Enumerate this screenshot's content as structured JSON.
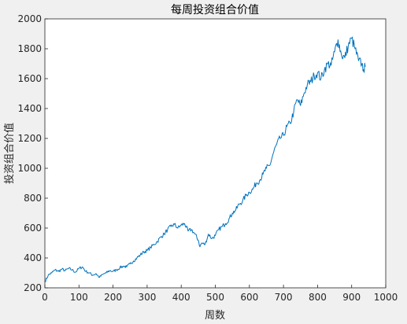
{
  "chart_data": {
    "type": "line",
    "title": "每周投资组合价值",
    "xlabel": "周数",
    "ylabel": "投资组合价值",
    "xlim": [
      0,
      1000
    ],
    "ylim": [
      200,
      2000
    ],
    "xticks": [
      0,
      100,
      200,
      300,
      400,
      500,
      600,
      700,
      800,
      900,
      1000
    ],
    "yticks": [
      200,
      400,
      600,
      800,
      1000,
      1200,
      1400,
      1600,
      1800,
      2000
    ],
    "grid": false,
    "legend": "none",
    "series": [
      {
        "color": "#0072bd",
        "x": [
          0,
          10,
          20,
          30,
          40,
          50,
          60,
          70,
          80,
          90,
          100,
          110,
          120,
          130,
          140,
          150,
          160,
          170,
          180,
          190,
          200,
          210,
          220,
          230,
          240,
          250,
          260,
          270,
          280,
          290,
          300,
          310,
          320,
          330,
          340,
          350,
          360,
          370,
          380,
          390,
          400,
          410,
          420,
          430,
          440,
          450,
          455,
          460,
          470,
          480,
          490,
          500,
          510,
          520,
          530,
          540,
          550,
          560,
          570,
          580,
          590,
          600,
          610,
          620,
          630,
          640,
          650,
          660,
          670,
          680,
          690,
          700,
          710,
          720,
          730,
          740,
          750,
          760,
          770,
          780,
          790,
          800,
          810,
          820,
          830,
          840,
          850,
          860,
          870,
          880,
          890,
          900,
          910,
          920,
          930,
          935,
          940
        ],
        "values": [
          240,
          285,
          300,
          320,
          310,
          325,
          315,
          330,
          320,
          305,
          330,
          340,
          310,
          300,
          285,
          295,
          270,
          290,
          300,
          315,
          310,
          320,
          335,
          345,
          340,
          360,
          380,
          400,
          420,
          440,
          450,
          470,
          490,
          510,
          540,
          560,
          590,
          610,
          625,
          600,
          620,
          630,
          580,
          590,
          560,
          520,
          475,
          500,
          490,
          560,
          530,
          550,
          590,
          610,
          630,
          660,
          700,
          720,
          760,
          780,
          820,
          840,
          860,
          900,
          920,
          960,
          1000,
          1020,
          1100,
          1160,
          1200,
          1220,
          1280,
          1300,
          1380,
          1460,
          1420,
          1500,
          1560,
          1580,
          1620,
          1640,
          1600,
          1660,
          1700,
          1690,
          1780,
          1860,
          1760,
          1740,
          1820,
          1870,
          1800,
          1720,
          1700,
          1660,
          1680
        ]
      }
    ]
  }
}
